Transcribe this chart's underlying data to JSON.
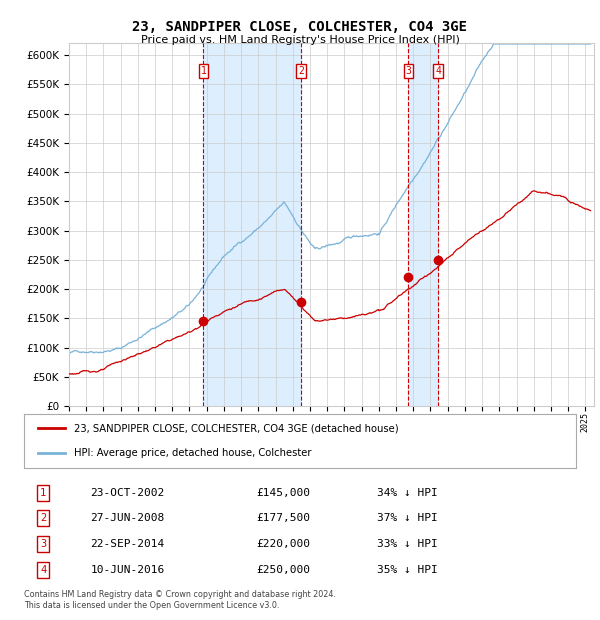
{
  "title": "23, SANDPIPER CLOSE, COLCHESTER, CO4 3GE",
  "subtitle": "Price paid vs. HM Land Registry's House Price Index (HPI)",
  "hpi_legend": "HPI: Average price, detached house, Colchester",
  "price_legend": "23, SANDPIPER CLOSE, COLCHESTER, CO4 3GE (detached house)",
  "footer_line1": "Contains HM Land Registry data © Crown copyright and database right 2024.",
  "footer_line2": "This data is licensed under the Open Government Licence v3.0.",
  "transactions": [
    {
      "num": 1,
      "date": "23-OCT-2002",
      "year": 2002.81,
      "price": 145000,
      "pct": "34% ↓ HPI"
    },
    {
      "num": 2,
      "date": "27-JUN-2008",
      "year": 2008.49,
      "price": 177500,
      "pct": "37% ↓ HPI"
    },
    {
      "num": 3,
      "date": "22-SEP-2014",
      "year": 2014.72,
      "price": 220000,
      "pct": "33% ↓ HPI"
    },
    {
      "num": 4,
      "date": "10-JUN-2016",
      "year": 2016.44,
      "price": 250000,
      "pct": "35% ↓ HPI"
    }
  ],
  "hpi_color": "#7ab3d8",
  "price_color": "#cc0000",
  "shade_color": "#ddeeff",
  "grid_color": "#cccccc",
  "bg_color": "#ffffff",
  "ylim": [
    0,
    620000
  ],
  "yticks": [
    0,
    50000,
    100000,
    150000,
    200000,
    250000,
    300000,
    350000,
    400000,
    450000,
    500000,
    550000,
    600000
  ],
  "xmin": 1995.0,
  "xmax": 2025.5
}
